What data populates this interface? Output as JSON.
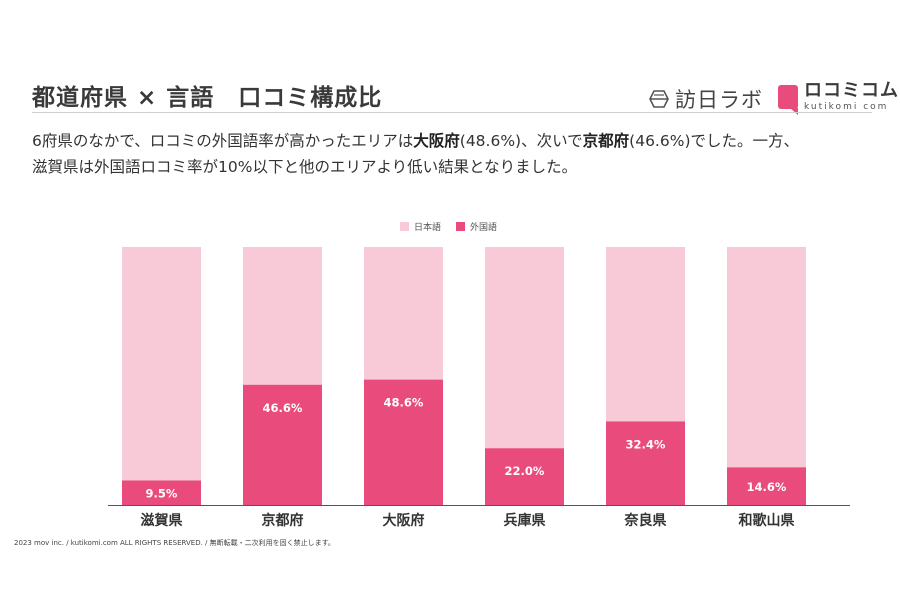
{
  "header": {
    "title": "都道府県 × 言語　口コミ構成比",
    "logo_hono": "訪日ラボ",
    "logo_kuchikomi": "ロコミコム",
    "logo_kuchikomi_sub": "kutikomi com"
  },
  "description": {
    "line1_a": "6府県のなかで、ロコミの外国語率が高かったエリアは",
    "line1_b": "大阪府",
    "line1_c": "(48.6%)、次いで",
    "line1_d": "京都府",
    "line1_e": "(46.6%)でした。一方、",
    "line2": "滋賀県は外国語ロコミ率が10%以下と他のエリアより低い結果となりました。"
  },
  "footer": "2023 mov inc. / kutikomi.com ALL RIGHTS RESERVED. / 無断転載・二次利用を固く禁止します。",
  "chart_data": {
    "type": "bar",
    "stacked": true,
    "categories": [
      "滋賀県",
      "京都府",
      "大阪府",
      "兵庫県",
      "奈良県",
      "和歌山県"
    ],
    "series": [
      {
        "name": "日本語",
        "values": [
          90.5,
          53.4,
          51.4,
          78.0,
          67.6,
          85.4
        ],
        "color": "#f8c9d7"
      },
      {
        "name": "外国語",
        "values": [
          9.5,
          46.6,
          48.6,
          22.0,
          32.4,
          14.6
        ],
        "color": "#e94b7d"
      }
    ],
    "data_labels": [
      "9.5%",
      "46.6%",
      "48.6%",
      "22.0%",
      "32.4%",
      "14.6%"
    ],
    "ylim": [
      0,
      100
    ],
    "legend": "top-center",
    "grid": false
  }
}
